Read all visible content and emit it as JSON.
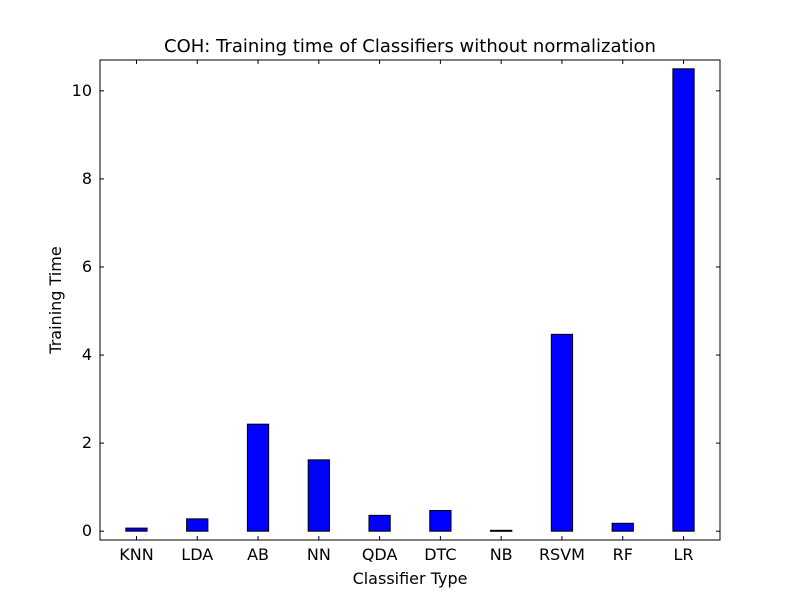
{
  "chart_data": {
    "type": "bar",
    "title": "COH: Training time of Classifiers without normalization",
    "xlabel": "Classifier Type",
    "ylabel": "Training Time",
    "categories": [
      "KNN",
      "LDA",
      "AB",
      "NN",
      "QDA",
      "DTC",
      "NB",
      "RSVM",
      "RF",
      "LR"
    ],
    "values": [
      0.07,
      0.28,
      2.43,
      1.62,
      0.36,
      0.47,
      0.02,
      4.47,
      0.18,
      10.5
    ],
    "ylim": [
      -0.2,
      10.7
    ],
    "yticks": [
      0,
      2,
      4,
      6,
      8,
      10
    ],
    "grid": false,
    "legend": "none",
    "colors": {
      "bar_fill": "#0000ff",
      "bar_edge": "#000000",
      "axes": "#000000",
      "background": "#ffffff"
    }
  }
}
